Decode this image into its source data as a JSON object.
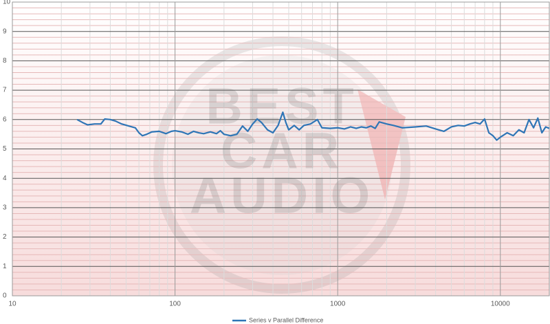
{
  "chart_data": {
    "type": "line",
    "xscale": "log",
    "grid": true,
    "minor_grid": true,
    "legend": "bottom",
    "watermark": [
      "BEST",
      "CAR",
      "AUDIO"
    ],
    "xlim": [
      10,
      20000
    ],
    "xticks": [
      10,
      100,
      1000,
      10000
    ],
    "ylim": [
      0,
      10
    ],
    "yticks": [
      0,
      1,
      2,
      3,
      4,
      5,
      6,
      7,
      8,
      9,
      10
    ],
    "x": [
      25,
      27,
      29,
      32,
      35,
      37,
      40,
      43,
      47,
      52,
      57,
      60,
      63,
      67,
      72,
      80,
      88,
      95,
      100,
      110,
      120,
      130,
      140,
      150,
      165,
      180,
      190,
      200,
      220,
      240,
      260,
      280,
      300,
      320,
      340,
      370,
      400,
      430,
      460,
      480,
      500,
      540,
      580,
      620,
      680,
      750,
      800,
      900,
      1000,
      1100,
      1200,
      1300,
      1400,
      1500,
      1600,
      1700,
      1800,
      2000,
      2200,
      2500,
      3000,
      3500,
      4000,
      4500,
      5000,
      5500,
      6000,
      6500,
      7000,
      7500,
      8000,
      8500,
      9000,
      9500,
      10000,
      11000,
      12000,
      13000,
      14000,
      15000,
      16000,
      17000,
      18000,
      19000,
      20000
    ],
    "series": [
      {
        "name": "Series v Parallel Difference",
        "color": "#2e75b6",
        "values": [
          6.0,
          5.9,
          5.82,
          5.85,
          5.85,
          6.02,
          6.0,
          5.95,
          5.85,
          5.78,
          5.72,
          5.55,
          5.45,
          5.5,
          5.58,
          5.6,
          5.52,
          5.6,
          5.62,
          5.58,
          5.5,
          5.6,
          5.55,
          5.52,
          5.58,
          5.52,
          5.62,
          5.5,
          5.45,
          5.5,
          5.78,
          5.6,
          5.85,
          6.02,
          5.9,
          5.65,
          5.55,
          5.8,
          6.25,
          5.9,
          5.65,
          5.8,
          5.65,
          5.8,
          5.85,
          6.0,
          5.72,
          5.7,
          5.72,
          5.68,
          5.75,
          5.7,
          5.75,
          5.72,
          5.78,
          5.7,
          5.92,
          5.85,
          5.8,
          5.72,
          5.75,
          5.78,
          5.68,
          5.6,
          5.75,
          5.8,
          5.78,
          5.85,
          5.9,
          5.85,
          6.02,
          5.55,
          5.45,
          5.3,
          5.4,
          5.55,
          5.45,
          5.65,
          5.55,
          6.0,
          5.72,
          6.05,
          5.55,
          5.75,
          5.7
        ]
      }
    ]
  }
}
